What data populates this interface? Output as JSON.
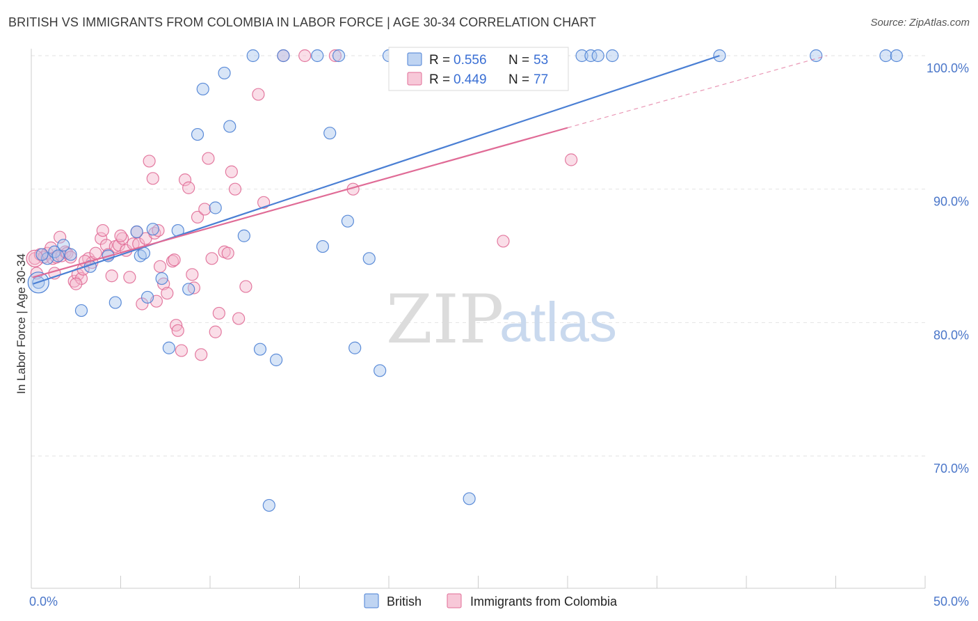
{
  "title": "BRITISH VS IMMIGRANTS FROM COLOMBIA IN LABOR FORCE | AGE 30-34 CORRELATION CHART",
  "source": "Source: ZipAtlas.com",
  "watermark": {
    "zip": "ZIP",
    "atlas": "atlas"
  },
  "colors": {
    "british": "#4a7fd4",
    "british_fill": "#a9c6ee",
    "colombia": "#e06b96",
    "colombia_fill": "#f4b6cb",
    "tick_label": "#4a76c9",
    "grid": "#e2e2e2"
  },
  "legend": {
    "r_label": "R =",
    "n_label": "N =",
    "rows": [
      {
        "series": "British",
        "r": "0.556",
        "n": "53"
      },
      {
        "series": "Immigrants from Colombia",
        "r": "0.449",
        "n": "77"
      }
    ]
  },
  "bottom_legend": [
    "British",
    "Immigrants from Colombia"
  ],
  "chart_data": {
    "type": "scatter",
    "title": "BRITISH VS IMMIGRANTS FROM COLOMBIA IN LABOR FORCE | AGE 30-34 CORRELATION CHART",
    "xlabel": "",
    "ylabel": "In Labor Force | Age 30-34",
    "xlim": [
      0,
      50
    ],
    "ylim": [
      60.5,
      101
    ],
    "x_tick_labels": [
      "0.0%",
      "50.0%"
    ],
    "y_ticks": [
      70,
      80,
      90,
      100
    ],
    "y_tick_labels": [
      "70.0%",
      "80.0%",
      "90.0%",
      "100.0%"
    ],
    "grid": true,
    "legend_position": "top-center",
    "series": [
      {
        "name": "British",
        "r": 0.556,
        "n": 53,
        "trend": {
          "x": [
            0.1,
            38.5
          ],
          "y": [
            82.9,
            100.0
          ]
        },
        "points": [
          [
            0.4,
            83.0
          ],
          [
            0.9,
            84.8
          ],
          [
            1.3,
            85.3
          ],
          [
            1.8,
            85.8
          ],
          [
            2.2,
            85.1
          ],
          [
            2.8,
            80.9
          ],
          [
            3.3,
            84.2
          ],
          [
            4.3,
            85.0
          ],
          [
            4.7,
            81.5
          ],
          [
            5.9,
            86.8
          ],
          [
            6.1,
            85.0
          ],
          [
            6.3,
            85.2
          ],
          [
            6.5,
            81.9
          ],
          [
            6.8,
            87.0
          ],
          [
            7.3,
            83.3
          ],
          [
            7.7,
            78.1
          ],
          [
            8.2,
            86.9
          ],
          [
            8.8,
            82.5
          ],
          [
            9.3,
            94.1
          ],
          [
            9.6,
            97.5
          ],
          [
            10.3,
            88.6
          ],
          [
            10.8,
            98.7
          ],
          [
            11.1,
            94.7
          ],
          [
            11.9,
            86.5
          ],
          [
            12.4,
            100.0
          ],
          [
            12.8,
            78.0
          ],
          [
            13.3,
            66.3
          ],
          [
            13.7,
            77.2
          ],
          [
            14.1,
            100.0
          ],
          [
            16.0,
            100.0
          ],
          [
            16.3,
            85.7
          ],
          [
            16.7,
            94.2
          ],
          [
            17.2,
            100.0
          ],
          [
            17.7,
            87.6
          ],
          [
            18.1,
            78.1
          ],
          [
            18.9,
            84.8
          ],
          [
            19.5,
            76.4
          ],
          [
            20.0,
            100.0
          ],
          [
            21.8,
            100.0
          ],
          [
            24.5,
            66.8
          ],
          [
            26.0,
            100.0
          ],
          [
            27.8,
            100.0
          ],
          [
            30.8,
            100.0
          ],
          [
            31.3,
            100.0
          ],
          [
            31.7,
            100.0
          ],
          [
            32.5,
            100.0
          ],
          [
            38.5,
            100.0
          ],
          [
            43.9,
            100.0
          ],
          [
            47.8,
            100.0
          ],
          [
            48.4,
            100.0
          ],
          [
            0.6,
            85.1
          ],
          [
            1.5,
            85.0
          ],
          [
            22.5,
            100.0
          ]
        ]
      },
      {
        "name": "Immigrants from Colombia",
        "r": 0.449,
        "n": 77,
        "trend": {
          "x": [
            0.1,
            30.0
          ],
          "y": [
            83.4,
            94.6
          ]
        },
        "trend_extension": {
          "x": [
            30.0,
            44.5
          ],
          "y": [
            94.6,
            100.0
          ]
        },
        "points": [
          [
            0.2,
            84.8
          ],
          [
            0.3,
            83.7
          ],
          [
            0.5,
            85.1
          ],
          [
            0.7,
            84.9
          ],
          [
            0.9,
            85.2
          ],
          [
            1.1,
            85.6
          ],
          [
            1.2,
            84.8
          ],
          [
            1.4,
            84.9
          ],
          [
            1.6,
            86.4
          ],
          [
            1.7,
            85.0
          ],
          [
            1.9,
            85.3
          ],
          [
            2.0,
            85.2
          ],
          [
            2.2,
            84.9
          ],
          [
            2.4,
            83.1
          ],
          [
            2.6,
            83.6
          ],
          [
            2.8,
            83.3
          ],
          [
            2.9,
            84.0
          ],
          [
            3.2,
            84.8
          ],
          [
            3.4,
            84.5
          ],
          [
            3.6,
            85.2
          ],
          [
            3.9,
            86.3
          ],
          [
            4.0,
            86.9
          ],
          [
            4.2,
            85.8
          ],
          [
            4.5,
            83.5
          ],
          [
            4.7,
            85.7
          ],
          [
            4.9,
            85.8
          ],
          [
            5.1,
            86.3
          ],
          [
            5.3,
            85.4
          ],
          [
            5.5,
            83.4
          ],
          [
            5.7,
            85.9
          ],
          [
            5.9,
            86.8
          ],
          [
            6.0,
            85.9
          ],
          [
            6.2,
            81.4
          ],
          [
            6.4,
            86.3
          ],
          [
            6.6,
            92.1
          ],
          [
            6.8,
            90.8
          ],
          [
            7.0,
            81.6
          ],
          [
            7.2,
            84.2
          ],
          [
            7.4,
            82.9
          ],
          [
            7.6,
            82.2
          ],
          [
            7.9,
            84.6
          ],
          [
            8.1,
            79.8
          ],
          [
            8.2,
            79.4
          ],
          [
            8.4,
            77.9
          ],
          [
            8.6,
            90.7
          ],
          [
            8.8,
            90.1
          ],
          [
            9.0,
            83.6
          ],
          [
            9.3,
            87.9
          ],
          [
            9.5,
            77.6
          ],
          [
            9.7,
            88.5
          ],
          [
            9.9,
            92.3
          ],
          [
            10.1,
            84.8
          ],
          [
            10.3,
            79.3
          ],
          [
            10.5,
            80.7
          ],
          [
            10.8,
            85.3
          ],
          [
            11.0,
            85.2
          ],
          [
            11.2,
            91.3
          ],
          [
            11.4,
            90.0
          ],
          [
            11.6,
            80.3
          ],
          [
            12.0,
            82.7
          ],
          [
            12.7,
            97.1
          ],
          [
            13.0,
            89.0
          ],
          [
            14.1,
            100.0
          ],
          [
            15.3,
            100.0
          ],
          [
            17.0,
            100.0
          ],
          [
            18.0,
            90.0
          ],
          [
            26.4,
            86.1
          ],
          [
            30.2,
            92.2
          ],
          [
            6.9,
            86.7
          ],
          [
            7.1,
            86.9
          ],
          [
            8.0,
            84.7
          ],
          [
            9.1,
            82.6
          ],
          [
            4.3,
            85.1
          ],
          [
            3.0,
            84.6
          ],
          [
            5.0,
            86.5
          ],
          [
            2.5,
            82.9
          ],
          [
            1.3,
            83.7
          ]
        ]
      }
    ]
  }
}
